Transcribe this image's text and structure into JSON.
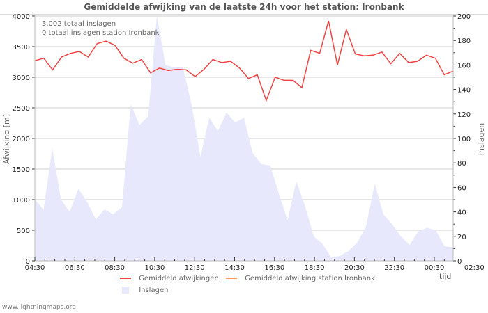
{
  "title": "Gemiddelde afwijking van de laatste 24h voor het station: Ironbank",
  "annotations": [
    "3.002 totaal inslagen",
    "0 totaal inslagen station Ironbank"
  ],
  "footer": "www.lightningmaps.org",
  "colors": {
    "line_avg": "#ee4444",
    "line_station": "#ff9955",
    "area_strikes": "#e8e8fc",
    "grid": "#cccccc",
    "axis": "#bbbbbb"
  },
  "legend": [
    {
      "label": "Gemiddeld afwijkingen",
      "type": "line",
      "color": "#ee4444"
    },
    {
      "label": "Gemiddeld afwijking station Ironbank",
      "type": "line",
      "color": "#ff9955"
    },
    {
      "label": "Inslagen",
      "type": "area",
      "color": "#e8e8fc"
    }
  ],
  "chart_data": {
    "type": "line",
    "title": "Gemiddelde afwijking van de laatste 24h voor het station: Ironbank",
    "xlabel": "tijd",
    "ylabel": "Afwijking  [m]",
    "y2label": "Inslagen",
    "ylim": [
      0,
      4000
    ],
    "y2lim": [
      0,
      200
    ],
    "yticks": [
      0,
      500,
      1000,
      1500,
      2000,
      2500,
      3000,
      3500,
      4000
    ],
    "y2ticks": [
      0,
      20,
      40,
      60,
      80,
      100,
      120,
      140,
      160,
      180,
      200
    ],
    "xticks": [
      "04:30",
      "06:30",
      "08:30",
      "10:30",
      "12:30",
      "14:30",
      "16:30",
      "18:30",
      "20:30",
      "22:30",
      "00:30",
      "02:30"
    ],
    "grid": true,
    "legend_position": "bottom",
    "series": [
      {
        "name": "Gemiddeld afwijkingen",
        "type": "line",
        "axis": "left",
        "values": [
          3270,
          3310,
          3120,
          3330,
          3390,
          3420,
          3330,
          3550,
          3590,
          3520,
          3310,
          3230,
          3290,
          3070,
          3150,
          3110,
          3130,
          3120,
          3010,
          3130,
          3290,
          3240,
          3260,
          3150,
          2980,
          3040,
          2620,
          3000,
          2950,
          2950,
          2830,
          3440,
          3390,
          3920,
          3200,
          3780,
          3380,
          3350,
          3360,
          3410,
          3220,
          3390,
          3240,
          3260,
          3360,
          3310,
          3040,
          3100
        ]
      },
      {
        "name": "Gemiddeld afwijking station Ironbank",
        "type": "line",
        "axis": "left",
        "values": []
      },
      {
        "name": "Inslagen",
        "type": "area",
        "axis": "right",
        "values": [
          50,
          42,
          92,
          50,
          40,
          59,
          48,
          34,
          42,
          38,
          44,
          128,
          111,
          118,
          200,
          160,
          158,
          158,
          127,
          85,
          117,
          106,
          121,
          113,
          117,
          88,
          79,
          78,
          55,
          33,
          65,
          45,
          20,
          14,
          3,
          4,
          8,
          15,
          28,
          63,
          38,
          30,
          20,
          13,
          24,
          27,
          25,
          12,
          11
        ]
      }
    ]
  }
}
